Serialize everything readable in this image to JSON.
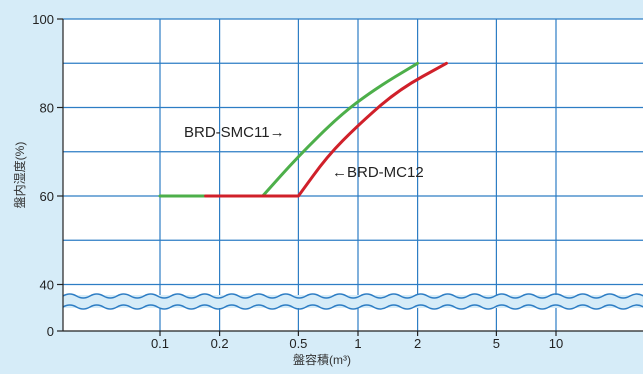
{
  "chart_data": {
    "type": "line",
    "xlabel": "盤容積(m³)",
    "ylabel": "盤内湿度(%)",
    "xscale": "log",
    "x_ticks": [
      {
        "value": 0.1,
        "label": "0.1"
      },
      {
        "value": 0.2,
        "label": "0.2"
      },
      {
        "value": 0.5,
        "label": "0.5"
      },
      {
        "value": 1,
        "label": "1"
      },
      {
        "value": 2,
        "label": "2"
      },
      {
        "value": 5,
        "label": "5"
      },
      {
        "value": 10,
        "label": "10"
      }
    ],
    "y_ticks": [
      {
        "value": 100,
        "label": "100"
      },
      {
        "value": 80,
        "label": "80"
      },
      {
        "value": 60,
        "label": "60"
      },
      {
        "value": 40,
        "label": "40"
      },
      {
        "value": 0,
        "label": "0"
      }
    ],
    "y_axis_break": "between 0 and 40",
    "grid": true,
    "series": [
      {
        "name": "BRD-SMC11",
        "color": "#4daf4a",
        "label_text": "BRD-SMC11→",
        "points": [
          [
            0.1,
            60
          ],
          [
            0.33,
            60
          ],
          [
            0.5,
            69
          ],
          [
            0.8,
            78
          ],
          [
            1.2,
            84
          ],
          [
            2.0,
            90
          ]
        ]
      },
      {
        "name": "BRD-MC12",
        "color": "#d0202a",
        "label_text": "←BRD-MC12",
        "points": [
          [
            0.17,
            60
          ],
          [
            0.5,
            60
          ],
          [
            0.7,
            69
          ],
          [
            1.0,
            76
          ],
          [
            1.6,
            84
          ],
          [
            2.8,
            90
          ]
        ]
      }
    ]
  }
}
